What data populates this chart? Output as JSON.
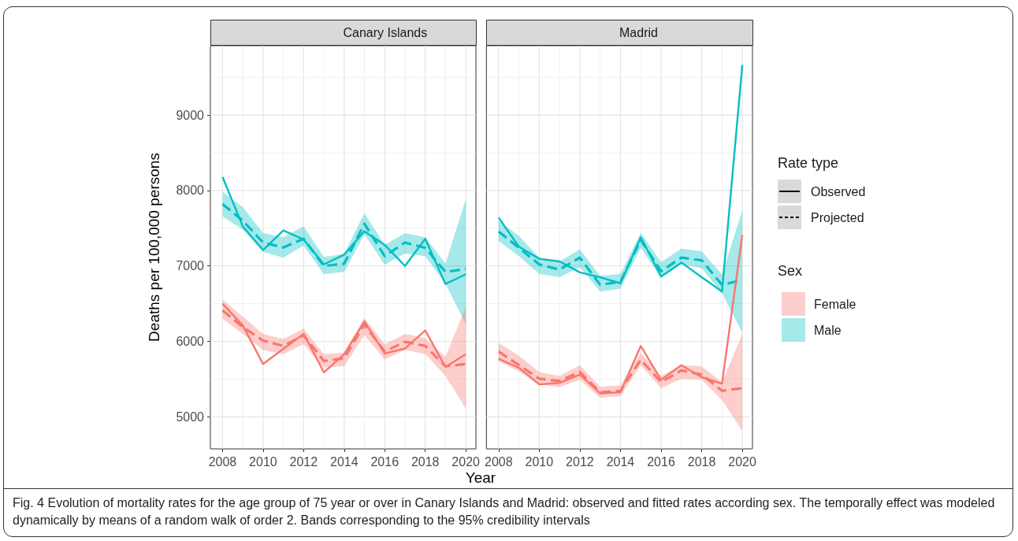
{
  "chart_data": [
    {
      "type": "line",
      "title": "Canary Islands",
      "xlabel": "Year",
      "ylabel": "Deaths per 100,000 persons",
      "x": [
        2008,
        2009,
        2010,
        2011,
        2012,
        2013,
        2014,
        2015,
        2016,
        2017,
        2018,
        2019,
        2020
      ],
      "xlim": [
        2007.4,
        2020.5
      ],
      "xticks": [
        2008,
        2010,
        2012,
        2014,
        2016,
        2018,
        2020
      ],
      "ylim": [
        4575,
        9920
      ],
      "yticks": [
        5000,
        6000,
        7000,
        8000,
        9000
      ],
      "grid": true,
      "legend": false,
      "marker": "none",
      "annotations": [
        "Fig. 4 Evolution of mortality rates for the age group of 75 year or over in Canary Islands and Madrid: observed and fitted rates according sex. The temporally effect was modeled dynamically by means of a random walk of order 2. Bands corresponding to the 95% credibility intervals"
      ],
      "series": [
        {
          "color": "#00bfc4",
          "line_style": "solid",
          "values": [
            8180,
            7525,
            7210,
            7470,
            7350,
            7020,
            7150,
            7460,
            7280,
            7000,
            7360,
            6760,
            6890
          ]
        },
        {
          "color": "#00bfc4",
          "line_style": "dashed",
          "values": [
            7820,
            7600,
            7310,
            7245,
            7360,
            7000,
            7030,
            7560,
            7130,
            7310,
            7240,
            6920,
            6960
          ],
          "lower": [
            7660,
            7480,
            7185,
            7110,
            7270,
            6890,
            6920,
            7420,
            7015,
            7165,
            7130,
            6765,
            6230
          ],
          "upper": [
            7980,
            7780,
            7435,
            7380,
            7525,
            7120,
            7160,
            7700,
            7280,
            7435,
            7380,
            7030,
            7885
          ]
        },
        {
          "color": "#f8766d",
          "line_style": "solid",
          "values": [
            6500,
            6210,
            5700,
            5900,
            6100,
            5590,
            5830,
            6265,
            5840,
            5905,
            6145,
            5660,
            5830
          ]
        },
        {
          "color": "#f8766d",
          "line_style": "dashed",
          "values": [
            6410,
            6190,
            6010,
            5940,
            6080,
            5740,
            5775,
            6225,
            5865,
            5995,
            5940,
            5670,
            5700
          ],
          "lower": [
            6300,
            6100,
            5885,
            5830,
            5960,
            5650,
            5670,
            6080,
            5760,
            5885,
            5830,
            5540,
            5110
          ],
          "upper": [
            6555,
            6330,
            6100,
            6030,
            6170,
            5830,
            5850,
            6310,
            5960,
            6100,
            6045,
            5795,
            6460
          ]
        }
      ]
    },
    {
      "type": "line",
      "title": "Madrid",
      "x": [
        2008,
        2009,
        2010,
        2011,
        2012,
        2013,
        2014,
        2015,
        2016,
        2017,
        2018,
        2019,
        2020
      ],
      "xlim": [
        2007.4,
        2020.5
      ],
      "xticks": [
        2008,
        2010,
        2012,
        2014,
        2016,
        2018,
        2020
      ],
      "ylim": [
        4575,
        9920
      ],
      "yticks": [
        5000,
        6000,
        7000,
        8000,
        9000
      ],
      "tick_labels": "x",
      "grid": true,
      "legend": "right",
      "legend_title": "Sex",
      "marker": "none",
      "annotations": [
        "Rate type",
        "Observed",
        "Projected"
      ],
      "series": [
        {
          "name": "Male",
          "color": "#00bfc4",
          "line_style": "solid",
          "values": [
            7640,
            7255,
            7095,
            7060,
            6915,
            6850,
            6770,
            7380,
            6860,
            7045,
            6850,
            6660,
            9665
          ]
        },
        {
          "color": "#00bfc4",
          "line_style": "dashed",
          "values": [
            7455,
            7240,
            7020,
            6950,
            7110,
            6750,
            6790,
            7345,
            6930,
            7110,
            7075,
            6750,
            6815
          ],
          "lower": [
            7330,
            7130,
            6895,
            6850,
            6985,
            6660,
            6700,
            7240,
            6840,
            7020,
            6970,
            6640,
            6115
          ],
          "upper": [
            7600,
            7400,
            7110,
            7060,
            7220,
            6870,
            6895,
            7440,
            7050,
            7230,
            7195,
            6885,
            7740
          ]
        },
        {
          "name": "Female",
          "color": "#f8766d",
          "line_style": "solid",
          "values": [
            5770,
            5650,
            5430,
            5450,
            5560,
            5310,
            5325,
            5940,
            5490,
            5685,
            5525,
            5440,
            7410
          ]
        },
        {
          "color": "#f8766d",
          "line_style": "dashed",
          "values": [
            5865,
            5685,
            5505,
            5475,
            5595,
            5325,
            5345,
            5755,
            5460,
            5615,
            5560,
            5345,
            5380
          ],
          "lower": [
            5740,
            5600,
            5430,
            5395,
            5490,
            5250,
            5275,
            5685,
            5380,
            5505,
            5490,
            5220,
            4815
          ],
          "upper": [
            5980,
            5810,
            5595,
            5540,
            5685,
            5400,
            5415,
            5850,
            5540,
            5685,
            5670,
            5455,
            6100
          ]
        }
      ]
    }
  ]
}
